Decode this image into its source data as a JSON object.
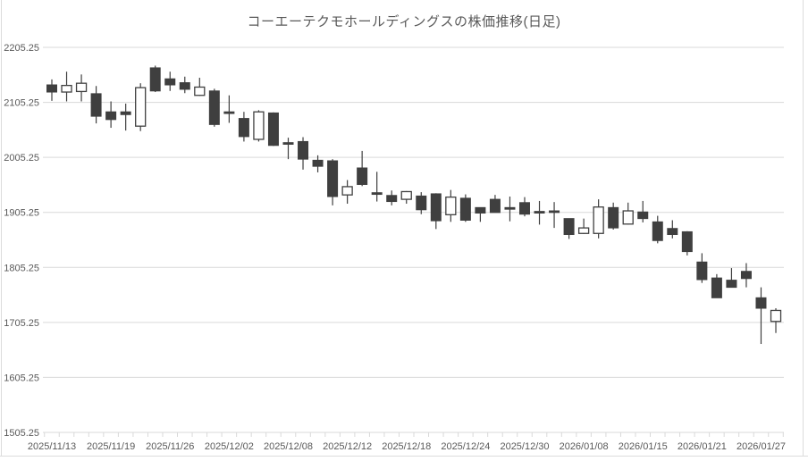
{
  "title": "コーエーテクモホールディングスの株価推移(日足)",
  "chart_data": {
    "type": "candlestick",
    "title": "コーエーテクモホールディングスの株価推移(日足)",
    "ylim": [
      1505.25,
      2205.25
    ],
    "y_tick_interval": 100,
    "y_tick_labels": [
      "2205.25",
      "2105.25",
      "2005.25",
      "1905.25",
      "1805.25",
      "1705.25",
      "1605.25",
      "1505.25"
    ],
    "x_tick_labels": [
      "2025/11/13",
      "2025/11/19",
      "2025/11/26",
      "2025/12/02",
      "2025/12/08",
      "2025/12/12",
      "2025/12/18",
      "2025/12/24",
      "2025/12/30",
      "2026/01/08",
      "2026/01/15",
      "2026/01/21",
      "2026/01/27"
    ],
    "x_label_every": 4,
    "grid": true,
    "legend": false,
    "candle_format": [
      "open",
      "high",
      "low",
      "close"
    ],
    "candles": [
      [
        2137,
        2147,
        2108,
        2124
      ],
      [
        2124,
        2161,
        2107,
        2136
      ],
      [
        2125,
        2156,
        2107,
        2140
      ],
      [
        2121,
        2135,
        2067,
        2080
      ],
      [
        2088,
        2107,
        2059,
        2074
      ],
      [
        2088,
        2103,
        2054,
        2083
      ],
      [
        2062,
        2140,
        2053,
        2132
      ],
      [
        2168,
        2172,
        2124,
        2126
      ],
      [
        2148,
        2161,
        2126,
        2137
      ],
      [
        2141,
        2152,
        2122,
        2129
      ],
      [
        2118,
        2150,
        2117,
        2133
      ],
      [
        2126,
        2130,
        2061,
        2065
      ],
      [
        2088,
        2118,
        2068,
        2085
      ],
      [
        2076,
        2088,
        2034,
        2043
      ],
      [
        2038,
        2091,
        2034,
        2088
      ],
      [
        2086,
        2087,
        2026,
        2027
      ],
      [
        2032,
        2041,
        2002,
        2030
      ],
      [
        2034,
        2042,
        1983,
        2002
      ],
      [
        2000,
        2009,
        1978,
        1989
      ],
      [
        1999,
        2002,
        1918,
        1934
      ],
      [
        1937,
        1964,
        1921,
        1952
      ],
      [
        1986,
        2017,
        1953,
        1956
      ],
      [
        1941,
        1979,
        1925,
        1938
      ],
      [
        1936,
        1945,
        1918,
        1925
      ],
      [
        1929,
        1944,
        1921,
        1943
      ],
      [
        1935,
        1942,
        1902,
        1910
      ],
      [
        1939,
        1940,
        1875,
        1890
      ],
      [
        1901,
        1946,
        1888,
        1933
      ],
      [
        1931,
        1938,
        1888,
        1891
      ],
      [
        1914,
        1914,
        1888,
        1904
      ],
      [
        1929,
        1937,
        1905,
        1905
      ],
      [
        1914,
        1934,
        1889,
        1911
      ],
      [
        1923,
        1933,
        1898,
        1902
      ],
      [
        1907,
        1926,
        1883,
        1904
      ],
      [
        1908,
        1924,
        1877,
        1906
      ],
      [
        1894,
        1894,
        1857,
        1865
      ],
      [
        1867,
        1894,
        1866,
        1877
      ],
      [
        1867,
        1929,
        1858,
        1915
      ],
      [
        1914,
        1923,
        1874,
        1877
      ],
      [
        1884,
        1923,
        1883,
        1908
      ],
      [
        1906,
        1926,
        1887,
        1894
      ],
      [
        1888,
        1899,
        1849,
        1854
      ],
      [
        1876,
        1891,
        1858,
        1865
      ],
      [
        1870,
        1871,
        1827,
        1834
      ],
      [
        1815,
        1831,
        1777,
        1783
      ],
      [
        1786,
        1793,
        1750,
        1750
      ],
      [
        1782,
        1804,
        1769,
        1769
      ],
      [
        1798,
        1813,
        1769,
        1785
      ],
      [
        1750,
        1769,
        1666,
        1731
      ],
      [
        1707,
        1731,
        1686,
        1727
      ]
    ],
    "colors": {
      "up_fill": "#ffffff",
      "down_fill": "#3f3f3f",
      "outline": "#404040",
      "grid": "#d9d9d9",
      "frame": "#dcdcdc",
      "text": "#595959"
    }
  }
}
